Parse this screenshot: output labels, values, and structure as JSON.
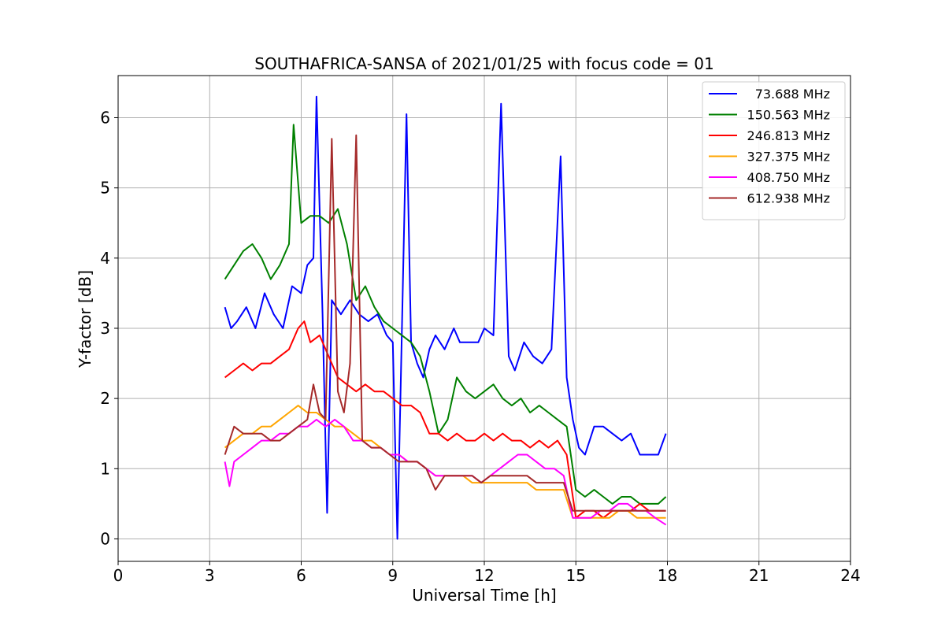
{
  "chart_data": {
    "type": "line",
    "title": "SOUTHAFRICA-SANSA of 2021/01/25 with focus code = 01",
    "xlabel": "Universal Time [h]",
    "ylabel": "Y-factor [dB]",
    "xlim": [
      0,
      24
    ],
    "ylim": [
      -0.32,
      6.6
    ],
    "xticks": [
      "0",
      "3",
      "6",
      "9",
      "12",
      "15",
      "18",
      "21",
      "24"
    ],
    "yticks": [
      "0",
      "1",
      "2",
      "3",
      "4",
      "5",
      "6"
    ],
    "grid": true,
    "legend_position": "top-right",
    "series": [
      {
        "name": "73.688 MHz",
        "color": "#0000ff",
        "x": [
          3.5,
          3.7,
          3.9,
          4.2,
          4.5,
          4.8,
          5.1,
          5.4,
          5.7,
          6.0,
          6.2,
          6.4,
          6.5,
          6.7,
          6.85,
          7.0,
          7.3,
          7.6,
          7.9,
          8.2,
          8.5,
          8.8,
          9.0,
          9.15,
          9.3,
          9.45,
          9.6,
          9.8,
          10.0,
          10.2,
          10.4,
          10.7,
          11.0,
          11.2,
          11.5,
          11.8,
          12.0,
          12.3,
          12.55,
          12.8,
          13.0,
          13.3,
          13.6,
          13.9,
          14.2,
          14.5,
          14.7,
          14.9,
          15.1,
          15.3,
          15.6,
          15.9,
          16.2,
          16.5,
          16.8,
          17.1,
          17.4,
          17.7,
          17.95
        ],
        "y": [
          3.3,
          3.0,
          3.1,
          3.3,
          3.0,
          3.5,
          3.2,
          3.0,
          3.6,
          3.5,
          3.9,
          4.0,
          6.3,
          3.2,
          0.37,
          3.4,
          3.2,
          3.4,
          3.2,
          3.1,
          3.2,
          2.9,
          2.8,
          0.0,
          3.0,
          6.05,
          2.8,
          2.5,
          2.3,
          2.7,
          2.9,
          2.7,
          3.0,
          2.8,
          2.8,
          2.8,
          3.0,
          2.9,
          6.2,
          2.6,
          2.4,
          2.8,
          2.6,
          2.5,
          2.7,
          5.45,
          2.3,
          1.7,
          1.3,
          1.2,
          1.6,
          1.6,
          1.5,
          1.4,
          1.5,
          1.2,
          1.2,
          1.2,
          1.5
        ]
      },
      {
        "name": "150.563 MHz",
        "color": "#008000",
        "x": [
          3.5,
          3.8,
          4.1,
          4.4,
          4.7,
          5.0,
          5.3,
          5.6,
          5.75,
          6.0,
          6.3,
          6.6,
          6.9,
          7.2,
          7.5,
          7.8,
          8.1,
          8.4,
          8.7,
          9.0,
          9.3,
          9.6,
          9.9,
          10.2,
          10.5,
          10.8,
          11.1,
          11.4,
          11.7,
          12.0,
          12.3,
          12.6,
          12.9,
          13.2,
          13.5,
          13.8,
          14.1,
          14.4,
          14.7,
          15.0,
          15.3,
          15.6,
          15.9,
          16.2,
          16.5,
          16.8,
          17.1,
          17.4,
          17.7,
          17.95
        ],
        "y": [
          3.7,
          3.9,
          4.1,
          4.2,
          4.0,
          3.7,
          3.9,
          4.2,
          5.9,
          4.5,
          4.6,
          4.6,
          4.5,
          4.7,
          4.2,
          3.4,
          3.6,
          3.3,
          3.1,
          3.0,
          2.9,
          2.8,
          2.6,
          2.1,
          1.5,
          1.7,
          2.3,
          2.1,
          2.0,
          2.1,
          2.2,
          2.0,
          1.9,
          2.0,
          1.8,
          1.9,
          1.8,
          1.7,
          1.6,
          0.7,
          0.6,
          0.7,
          0.6,
          0.5,
          0.6,
          0.6,
          0.5,
          0.5,
          0.5,
          0.6
        ]
      },
      {
        "name": "246.813 MHz",
        "color": "#ff0000",
        "x": [
          3.5,
          3.8,
          4.1,
          4.4,
          4.7,
          5.0,
          5.3,
          5.6,
          5.9,
          6.1,
          6.3,
          6.6,
          6.9,
          7.2,
          7.5,
          7.8,
          8.1,
          8.4,
          8.7,
          9.0,
          9.3,
          9.6,
          9.9,
          10.2,
          10.5,
          10.8,
          11.1,
          11.4,
          11.7,
          12.0,
          12.3,
          12.6,
          12.9,
          13.2,
          13.5,
          13.8,
          14.1,
          14.4,
          14.7,
          15.0,
          15.3,
          15.6,
          15.9,
          16.2,
          16.5,
          16.8,
          17.1,
          17.4,
          17.7,
          17.95
        ],
        "y": [
          2.3,
          2.4,
          2.5,
          2.4,
          2.5,
          2.5,
          2.6,
          2.7,
          3.0,
          3.1,
          2.8,
          2.9,
          2.6,
          2.3,
          2.2,
          2.1,
          2.2,
          2.1,
          2.1,
          2.0,
          1.9,
          1.9,
          1.8,
          1.5,
          1.5,
          1.4,
          1.5,
          1.4,
          1.4,
          1.5,
          1.4,
          1.5,
          1.4,
          1.4,
          1.3,
          1.4,
          1.3,
          1.4,
          1.2,
          0.3,
          0.4,
          0.4,
          0.3,
          0.4,
          0.4,
          0.4,
          0.5,
          0.4,
          0.4,
          0.4
        ]
      },
      {
        "name": "327.375 MHz",
        "color": "#ffa500",
        "x": [
          3.5,
          3.8,
          4.1,
          4.4,
          4.7,
          5.0,
          5.3,
          5.6,
          5.9,
          6.2,
          6.5,
          6.8,
          7.1,
          7.4,
          7.7,
          8.0,
          8.3,
          8.6,
          8.9,
          9.2,
          9.5,
          9.8,
          10.1,
          10.4,
          10.7,
          11.0,
          11.3,
          11.6,
          11.9,
          12.2,
          12.5,
          12.8,
          13.1,
          13.4,
          13.7,
          14.0,
          14.3,
          14.6,
          14.9,
          15.2,
          15.5,
          15.8,
          16.1,
          16.4,
          16.7,
          17.0,
          17.3,
          17.6,
          17.95
        ],
        "y": [
          1.3,
          1.4,
          1.5,
          1.5,
          1.6,
          1.6,
          1.7,
          1.8,
          1.9,
          1.8,
          1.8,
          1.7,
          1.6,
          1.6,
          1.5,
          1.4,
          1.4,
          1.3,
          1.2,
          1.2,
          1.1,
          1.1,
          1.0,
          0.9,
          0.9,
          0.9,
          0.9,
          0.8,
          0.8,
          0.8,
          0.8,
          0.8,
          0.8,
          0.8,
          0.7,
          0.7,
          0.7,
          0.7,
          0.3,
          0.3,
          0.3,
          0.3,
          0.3,
          0.4,
          0.4,
          0.3,
          0.3,
          0.3,
          0.3
        ]
      },
      {
        "name": "408.750 MHz",
        "color": "#ff00ff",
        "x": [
          3.5,
          3.65,
          3.8,
          4.1,
          4.4,
          4.7,
          5.0,
          5.3,
          5.6,
          5.9,
          6.2,
          6.5,
          6.8,
          7.1,
          7.4,
          7.7,
          8.0,
          8.3,
          8.6,
          8.9,
          9.2,
          9.5,
          9.8,
          10.1,
          10.4,
          10.7,
          11.0,
          11.3,
          11.6,
          11.9,
          12.2,
          12.5,
          12.8,
          13.1,
          13.4,
          13.7,
          14.0,
          14.3,
          14.6,
          14.9,
          15.2,
          15.5,
          15.8,
          16.1,
          16.4,
          16.7,
          17.0,
          17.3,
          17.6,
          17.95
        ],
        "y": [
          1.1,
          0.75,
          1.1,
          1.2,
          1.3,
          1.4,
          1.4,
          1.5,
          1.5,
          1.6,
          1.6,
          1.7,
          1.6,
          1.7,
          1.6,
          1.4,
          1.4,
          1.3,
          1.3,
          1.2,
          1.2,
          1.1,
          1.1,
          1.0,
          0.9,
          0.9,
          0.9,
          0.9,
          0.9,
          0.8,
          0.9,
          1.0,
          1.1,
          1.2,
          1.2,
          1.1,
          1.0,
          1.0,
          0.9,
          0.3,
          0.3,
          0.3,
          0.4,
          0.4,
          0.5,
          0.5,
          0.4,
          0.4,
          0.3,
          0.2
        ]
      },
      {
        "name": "612.938 MHz",
        "color": "#a52a2a",
        "x": [
          3.5,
          3.8,
          4.1,
          4.4,
          4.7,
          5.0,
          5.3,
          5.6,
          5.9,
          6.2,
          6.4,
          6.6,
          6.8,
          7.0,
          7.2,
          7.4,
          7.6,
          7.8,
          8.0,
          8.3,
          8.6,
          8.9,
          9.2,
          9.5,
          9.8,
          10.1,
          10.4,
          10.7,
          11.0,
          11.3,
          11.6,
          11.9,
          12.2,
          12.5,
          12.8,
          13.1,
          13.4,
          13.7,
          14.0,
          14.3,
          14.6,
          14.9,
          15.2,
          15.5,
          15.8,
          16.1,
          16.4,
          16.7,
          17.0,
          17.3,
          17.6,
          17.95
        ],
        "y": [
          1.2,
          1.6,
          1.5,
          1.5,
          1.5,
          1.4,
          1.4,
          1.5,
          1.6,
          1.7,
          2.2,
          1.8,
          1.7,
          5.7,
          2.1,
          1.8,
          2.5,
          5.75,
          1.4,
          1.3,
          1.3,
          1.2,
          1.1,
          1.1,
          1.1,
          1.0,
          0.7,
          0.9,
          0.9,
          0.9,
          0.9,
          0.8,
          0.9,
          0.9,
          0.9,
          0.9,
          0.9,
          0.8,
          0.8,
          0.8,
          0.8,
          0.4,
          0.4,
          0.4,
          0.4,
          0.4,
          0.4,
          0.4,
          0.4,
          0.4,
          0.4,
          0.4
        ]
      }
    ]
  }
}
